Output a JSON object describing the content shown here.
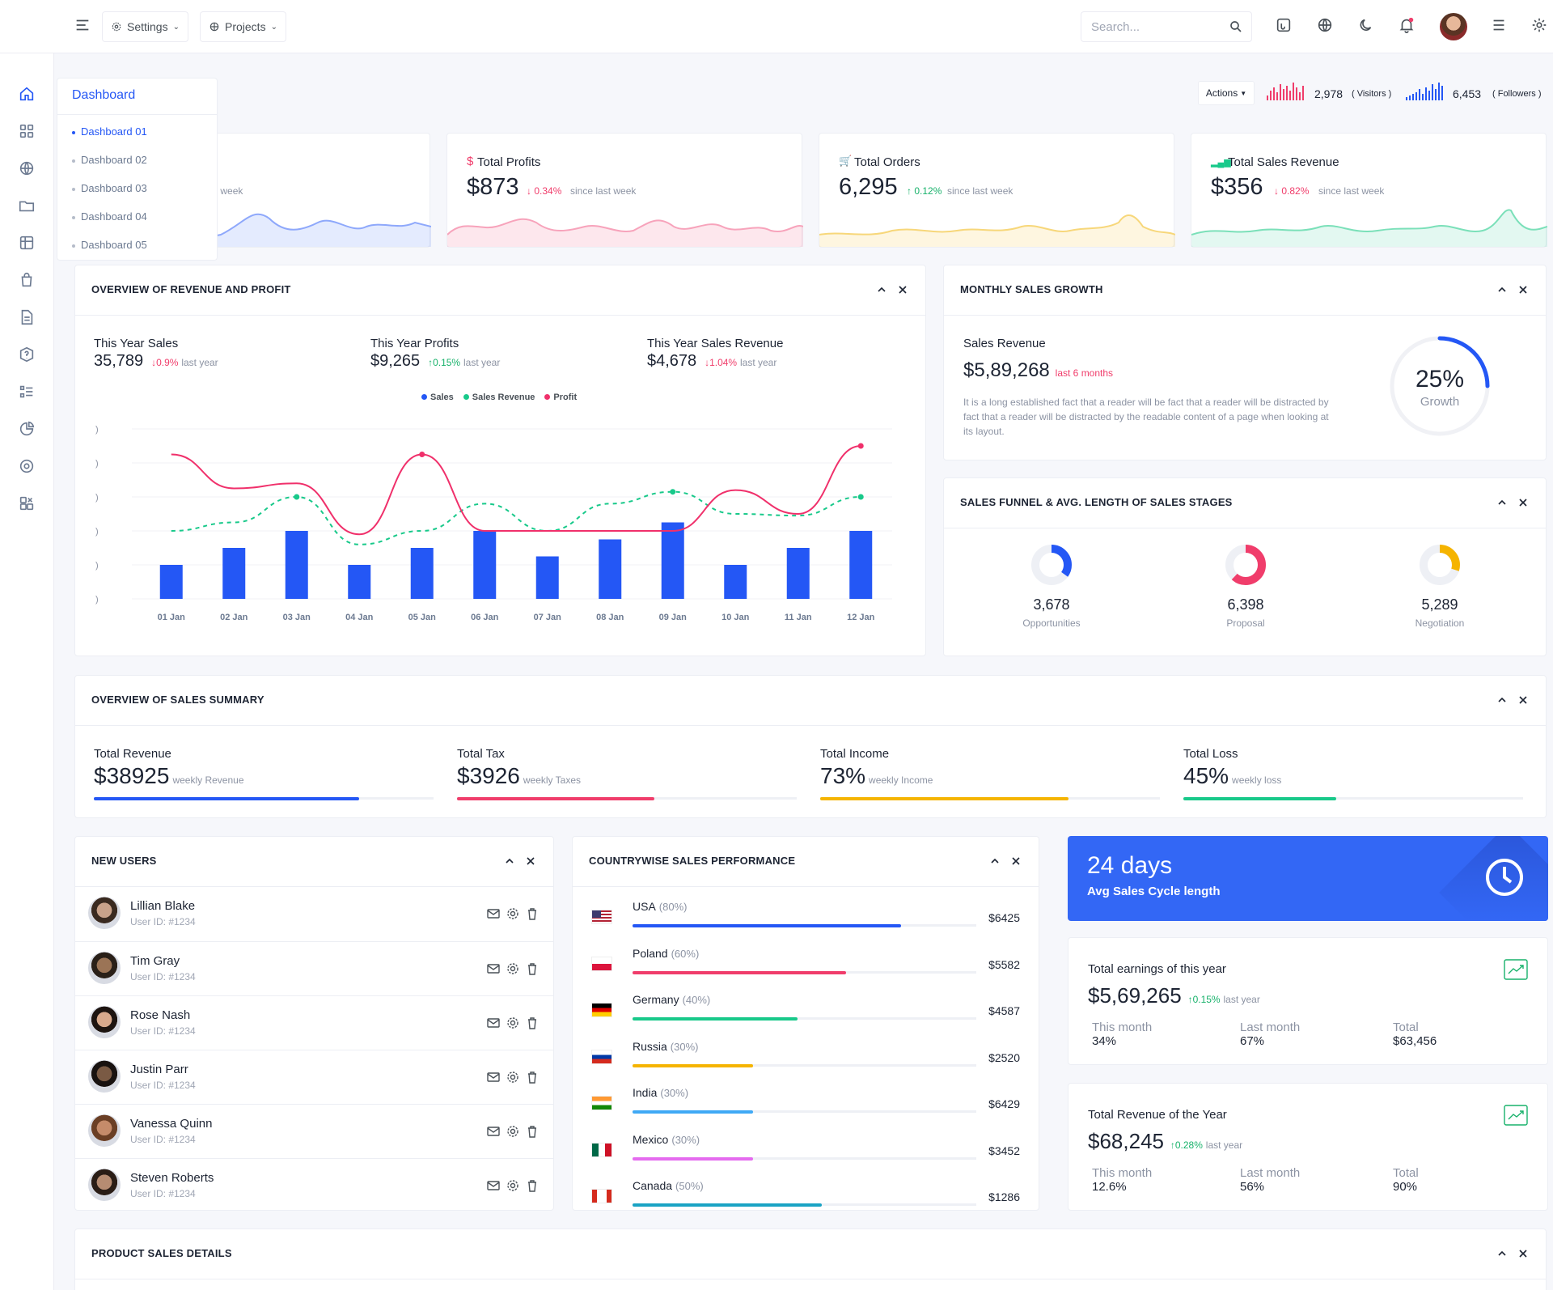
{
  "nav": {
    "settings_label": "Settings",
    "projects_label": "Projects",
    "search_placeholder": "Search..."
  },
  "dashboard_menu": {
    "title": "Dashboard",
    "items": [
      "Dashboard 01",
      "Dashboard 02",
      "Dashboard 03",
      "Dashboard 04",
      "Dashboard 05"
    ]
  },
  "header_stats": {
    "actions_label": "Actions",
    "visitors_value": "2,978",
    "visitors_label": "( Visitors )",
    "followers_value": "6,453",
    "followers_label": "( Followers )"
  },
  "kpis": [
    {
      "label": "",
      "value": "",
      "change": "",
      "since": "since last week",
      "color": "#2457f5"
    },
    {
      "label": "Total Profits",
      "value": "$873",
      "change": "0.34%",
      "since": "since last week",
      "color": "#f03d6b"
    },
    {
      "label": "Total Orders",
      "value": "6,295",
      "change": "0.12%",
      "since": "since last week",
      "color": "#f5b400"
    },
    {
      "label": "Total Sales Revenue",
      "value": "$356",
      "change": "0.82%",
      "since": "since last week",
      "color": "#18c98a"
    }
  ],
  "overview": {
    "title": "OVERVIEW OF REVENUE AND PROFIT",
    "stats": [
      {
        "label": "This Year Sales",
        "value": "35,789",
        "change": "0.9%",
        "note": "last year"
      },
      {
        "label": "This Year Profits",
        "value": "$9,265",
        "change": "0.15%",
        "note": "last year"
      },
      {
        "label": "This Year Sales Revenue",
        "value": "$4,678",
        "change": "1.04%",
        "note": "last year"
      }
    ],
    "legend": [
      "Sales",
      "Sales Revenue",
      "Profit"
    ]
  },
  "chart_data": {
    "type": "bar",
    "categories": [
      "01 Jan",
      "02 Jan",
      "03 Jan",
      "04 Jan",
      "05 Jan",
      "06 Jan",
      "07 Jan",
      "08 Jan",
      "09 Jan",
      "10 Jan",
      "11 Jan",
      "12 Jan"
    ],
    "series": [
      {
        "name": "Sales",
        "type": "bar",
        "color": "#2457f5",
        "values": [
          2,
          3,
          4,
          2,
          3,
          4,
          2.5,
          3.5,
          4.5,
          2,
          3,
          4
        ]
      },
      {
        "name": "Sales Revenue",
        "type": "line",
        "style": "dashed",
        "color": "#18c98a",
        "values": [
          4,
          4.5,
          6,
          3.2,
          4,
          5.6,
          4,
          5.6,
          6.3,
          5,
          4.9,
          6
        ]
      },
      {
        "name": "Profit",
        "type": "line",
        "color": "#f0306b",
        "values": [
          8.5,
          6.5,
          6.8,
          3.8,
          8.5,
          4,
          4,
          4,
          4,
          6.4,
          5,
          9
        ]
      }
    ],
    "ylim": [
      0,
      10
    ]
  },
  "monthly": {
    "title": "MONTHLY SALES GROWTH",
    "label": "Sales Revenue",
    "value": "$5,89,268",
    "note": "last 6 months",
    "desc": "It is a long established fact that a reader will be fact that a reader will be distracted by fact that a reader will be distracted by the readable content of a page when looking at its layout.",
    "gauge_value": "25%",
    "gauge_label": "Growth",
    "gauge_fraction": 0.25
  },
  "funnel": {
    "title": "SALES FUNNEL & AVG. LENGTH OF SALES STAGES",
    "items": [
      {
        "value": "3,678",
        "label": "Opportunities",
        "color": "#2457f5",
        "fraction": 0.35
      },
      {
        "value": "6,398",
        "label": "Proposal",
        "color": "#f03d6b",
        "fraction": 0.62
      },
      {
        "value": "5,289",
        "label": "Negotiation",
        "color": "#f5b400",
        "fraction": 0.3
      }
    ]
  },
  "summary": {
    "title": "OVERVIEW OF SALES SUMMARY",
    "items": [
      {
        "label": "Total Revenue",
        "value": "$38925",
        "note": "weekly Revenue",
        "color": "#2457f5",
        "fraction": 0.78
      },
      {
        "label": "Total Tax",
        "value": "$3926",
        "note": "weekly Taxes",
        "color": "#f03d6b",
        "fraction": 0.58
      },
      {
        "label": "Total Income",
        "value": "73%",
        "note": "weekly Income",
        "color": "#f5b400",
        "fraction": 0.73
      },
      {
        "label": "Total Loss",
        "value": "45%",
        "note": "weekly loss",
        "color": "#18c98a",
        "fraction": 0.45
      }
    ]
  },
  "new_users": {
    "title": "NEW USERS",
    "users": [
      {
        "name": "Lillian Blake",
        "id": "User ID: #1234"
      },
      {
        "name": "Tim Gray",
        "id": "User ID: #1234"
      },
      {
        "name": "Rose Nash",
        "id": "User ID: #1234"
      },
      {
        "name": "Justin Parr",
        "id": "User ID: #1234"
      },
      {
        "name": "Vanessa Quinn",
        "id": "User ID: #1234"
      },
      {
        "name": "Steven Roberts",
        "id": "User ID: #1234"
      }
    ]
  },
  "countries": {
    "title": "COUNTRYWISE SALES PERFORMANCE",
    "items": [
      {
        "name": "USA",
        "pct": "(80%)",
        "value": "$6425",
        "color": "#2457f5",
        "fraction": 0.78
      },
      {
        "name": "Poland",
        "pct": "(60%)",
        "value": "$5582",
        "color": "#f03d6b",
        "fraction": 0.62
      },
      {
        "name": "Germany",
        "pct": "(40%)",
        "value": "$4587",
        "color": "#18c98a",
        "fraction": 0.48
      },
      {
        "name": "Russia",
        "pct": "(30%)",
        "value": "$2520",
        "color": "#f5b400",
        "fraction": 0.35
      },
      {
        "name": "India",
        "pct": "(30%)",
        "value": "$6429",
        "color": "#3fa9f5",
        "fraction": 0.35
      },
      {
        "name": "Mexico",
        "pct": "(30%)",
        "value": "$3452",
        "color": "#e56bef",
        "fraction": 0.35
      },
      {
        "name": "Canada",
        "pct": "(50%)",
        "value": "$1286",
        "color": "#1aa3c4",
        "fraction": 0.55
      }
    ]
  },
  "cycle": {
    "value": "24 days",
    "label": "Avg Sales Cycle length"
  },
  "earnings": {
    "title": "Total earnings of this year",
    "value": "$5,69,265",
    "change": "0.15%",
    "note": "last year",
    "cols": [
      {
        "label": "This month",
        "value": "34%"
      },
      {
        "label": "Last month",
        "value": "67%"
      },
      {
        "label": "Total",
        "value": "$63,456"
      }
    ]
  },
  "revenue_year": {
    "title": "Total Revenue of the Year",
    "value": "$68,245",
    "change": "0.28%",
    "note": "last year",
    "cols": [
      {
        "label": "This month",
        "value": "12.6%"
      },
      {
        "label": "Last month",
        "value": "56%"
      },
      {
        "label": "Total",
        "value": "90%"
      }
    ]
  },
  "product_sales": {
    "title": "PRODUCT SALES DETAILS"
  }
}
